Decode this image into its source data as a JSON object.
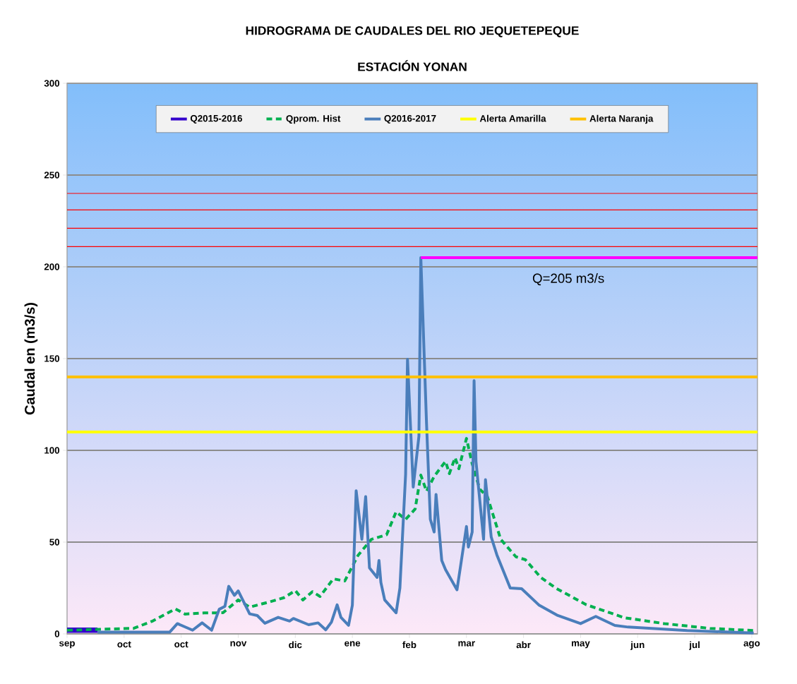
{
  "chart_data": {
    "type": "line",
    "title": "HIDROGRAMA DE CAUDALES DEL RIO JEQUETEPEQUE",
    "subtitle": "ESTACIÓN YONAN",
    "ylabel": "Caudal en (m3/s)",
    "xlim": [
      "2016-09-01",
      "2017-08-30"
    ],
    "ylim": [
      0,
      300
    ],
    "xticks": [
      {
        "value": "2016-09-01",
        "label": "sep"
      },
      {
        "value": "2016-10-01",
        "label": "oct"
      },
      {
        "value": "2016-10-31",
        "label": "oct"
      },
      {
        "value": "2016-11-30",
        "label": "nov"
      },
      {
        "value": "2016-12-30",
        "label": "dic"
      },
      {
        "value": "2017-01-29",
        "label": "ene"
      },
      {
        "value": "2017-02-28",
        "label": "feb"
      },
      {
        "value": "2017-03-30",
        "label": "mar"
      },
      {
        "value": "2017-04-29",
        "label": "abr"
      },
      {
        "value": "2017-05-29",
        "label": "may"
      },
      {
        "value": "2017-06-28",
        "label": "jun"
      },
      {
        "value": "2017-07-28",
        "label": "jul"
      },
      {
        "value": "2017-08-27",
        "label": "ago"
      }
    ],
    "yticks": [
      0,
      50,
      100,
      150,
      200,
      250,
      300
    ],
    "grid": "y",
    "legend": "top",
    "series": [
      {
        "name": "Q2015-2016",
        "color": "#3300cc",
        "x": [
          "2016-09-01",
          "2016-09-17"
        ],
        "values": [
          2,
          2
        ]
      },
      {
        "name": "Qprom. Hist",
        "color": "#00b050",
        "line_style": "dashed",
        "x": [
          "2016-09-01",
          "2016-10-06",
          "2016-10-16",
          "2016-10-28",
          "2016-11-02",
          "2016-11-12",
          "2016-11-22",
          "2016-11-30",
          "2016-12-06",
          "2016-12-16",
          "2016-12-24",
          "2016-12-30",
          "2017-01-03",
          "2017-01-08",
          "2017-01-12",
          "2017-01-19",
          "2017-01-25",
          "2017-02-01",
          "2017-02-08",
          "2017-02-16",
          "2017-02-21",
          "2017-02-26",
          "2017-03-03",
          "2017-03-06",
          "2017-03-09",
          "2017-03-13",
          "2017-03-19",
          "2017-03-21",
          "2017-03-24",
          "2017-03-26",
          "2017-03-30",
          "2017-04-02",
          "2017-04-06",
          "2017-04-10",
          "2017-04-17",
          "2017-04-25",
          "2017-04-30",
          "2017-05-08",
          "2017-05-16",
          "2017-06-01",
          "2017-06-21",
          "2017-07-12",
          "2017-08-05",
          "2017-08-28"
        ],
        "values": [
          2,
          3,
          7,
          13.6,
          10.8,
          11.4,
          11.5,
          18.5,
          14.6,
          17.3,
          19.7,
          23.6,
          18.5,
          23,
          20.4,
          30,
          28.8,
          42.8,
          51.5,
          54,
          66.5,
          62.4,
          68,
          86.5,
          77.7,
          85.8,
          94,
          87.3,
          96,
          90,
          106.5,
          92.7,
          78.8,
          74.8,
          51.5,
          42,
          40.4,
          30.8,
          24.9,
          15.9,
          8.8,
          5.6,
          3,
          1.8
        ]
      },
      {
        "name": "Q2016-2017",
        "color": "#4a7ebb",
        "x": [
          "2016-09-17",
          "2016-10-25",
          "2016-10-29",
          "2016-11-06",
          "2016-11-11",
          "2016-11-16",
          "2016-11-20",
          "2016-11-23",
          "2016-11-25",
          "2016-11-28",
          "2016-11-30",
          "2016-12-06",
          "2016-12-10",
          "2016-12-14",
          "2016-12-21",
          "2016-12-27",
          "2016-12-29",
          "2017-01-06",
          "2017-01-11",
          "2017-01-15",
          "2017-01-18",
          "2017-01-21",
          "2017-01-23",
          "2017-01-27",
          "2017-01-29",
          "2017-01-31",
          "2017-02-03",
          "2017-02-05",
          "2017-02-07",
          "2017-02-11",
          "2017-02-12",
          "2017-02-13",
          "2017-02-15",
          "2017-02-21",
          "2017-02-23",
          "2017-02-26",
          "2017-02-27",
          "2017-03-02",
          "2017-03-05",
          "2017-03-06",
          "2017-03-09",
          "2017-03-11",
          "2017-03-13",
          "2017-03-14",
          "2017-03-17",
          "2017-03-19",
          "2017-03-25",
          "2017-03-27",
          "2017-03-30",
          "2017-03-31",
          "2017-04-02",
          "2017-04-03",
          "2017-04-04",
          "2017-04-08",
          "2017-04-09",
          "2017-04-12",
          "2017-04-15",
          "2017-04-22",
          "2017-04-28",
          "2017-05-07",
          "2017-05-17",
          "2017-05-29",
          "2017-06-06",
          "2017-06-16",
          "2017-06-23",
          "2017-07-24",
          "2017-08-28"
        ],
        "values": [
          1,
          1,
          5.6,
          2,
          6,
          2,
          13.4,
          15,
          25.9,
          21,
          23.4,
          10.9,
          10,
          5.8,
          9,
          7,
          8.4,
          5,
          6,
          2.2,
          6.4,
          15.8,
          9,
          4.7,
          15.6,
          78,
          51.5,
          74.8,
          36,
          30.8,
          40,
          28,
          18.5,
          11.5,
          25,
          87,
          149.6,
          80,
          107.7,
          205,
          114.6,
          62.4,
          55.5,
          76,
          40,
          35,
          24,
          37.7,
          58.5,
          47.3,
          55.5,
          138,
          94,
          51.5,
          84,
          52.8,
          43,
          25,
          24.6,
          15.8,
          10,
          5.6,
          9.5,
          4.6,
          3.7,
          1.8,
          0.5
        ]
      },
      {
        "name": "Alerta Amarilla",
        "color": "#ffff00",
        "x": [
          "2016-09-01",
          "2017-08-30"
        ],
        "values": [
          110,
          110
        ]
      },
      {
        "name": "Alerta Naranja",
        "color": "#ffc000",
        "x": [
          "2016-09-01",
          "2017-08-30"
        ],
        "values": [
          140,
          140
        ]
      },
      {
        "color": "#ff00ff",
        "x": [
          "2017-03-06",
          "2017-08-30"
        ],
        "values": [
          205,
          205
        ]
      }
    ],
    "ref_lines": [
      {
        "axis": "y",
        "value": 240,
        "color": "#ff0000"
      },
      {
        "axis": "y",
        "value": 231,
        "color": "#ff0000"
      },
      {
        "axis": "y",
        "value": 221,
        "color": "#ff0000"
      },
      {
        "axis": "y",
        "value": 211,
        "color": "#ff0000"
      }
    ],
    "annotations": [
      "Q=205 m3/s"
    ]
  }
}
